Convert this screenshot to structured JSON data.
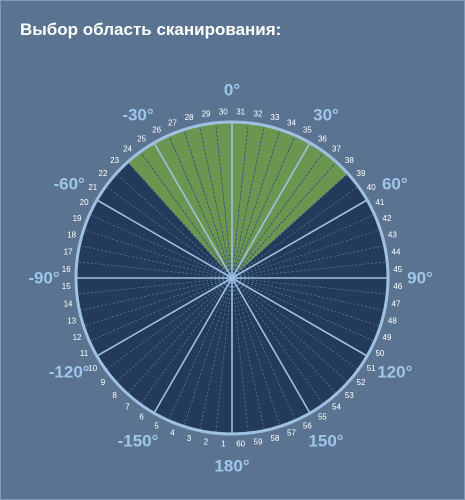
{
  "title": "Выбор область сканирования:",
  "dial": {
    "sector_count": 60,
    "selected_sectors": [
      24,
      25,
      26,
      27,
      28,
      29,
      30,
      31,
      32,
      33,
      34,
      35,
      36,
      37,
      38
    ],
    "angle_labels": [
      {
        "text": "0°",
        "deg": 0
      },
      {
        "text": "30°",
        "deg": 30
      },
      {
        "text": "60°",
        "deg": 60
      },
      {
        "text": "90°",
        "deg": 90
      },
      {
        "text": "120°",
        "deg": 120
      },
      {
        "text": "150°",
        "deg": 150
      },
      {
        "text": "180°",
        "deg": 180
      },
      {
        "text": "-150°",
        "deg": -150
      },
      {
        "text": "-120°",
        "deg": -120
      },
      {
        "text": "-90°",
        "deg": -90
      },
      {
        "text": "-60°",
        "deg": -60
      },
      {
        "text": "-30°",
        "deg": -30
      }
    ],
    "colors": {
      "background": "#5a7390",
      "sector_fill": "#233a5a",
      "selected_fill": "#6a9650",
      "rim": "#9fc0e0",
      "divider": "#7fa8d0",
      "angle_text": "#9ec5ea",
      "number_text": "#ffffff"
    }
  }
}
